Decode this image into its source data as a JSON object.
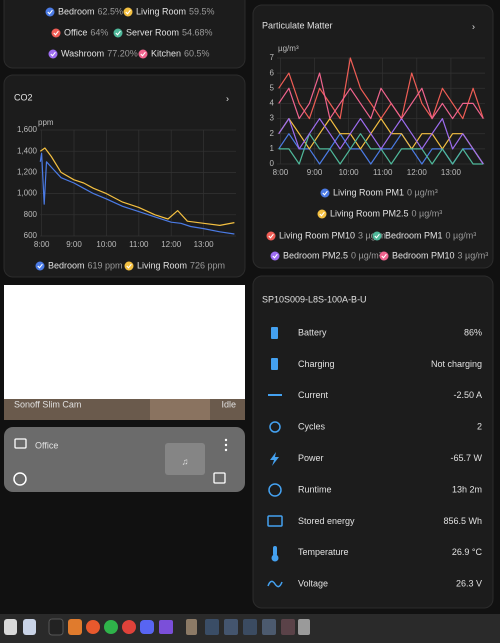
{
  "humidity_legend": [
    {
      "name": "Bedroom",
      "state": "62.5%",
      "color": "#4b7be5"
    },
    {
      "name": "Living Room",
      "state": "59.5%",
      "color": "#f4c041"
    },
    {
      "name": "Office",
      "state": "64%",
      "color": "#ef5d55"
    },
    {
      "name": "Server Room",
      "state": "54.68%",
      "color": "#4fb89a"
    },
    {
      "name": "Washroom",
      "state": "77.20%",
      "color": "#9d6cf0"
    },
    {
      "name": "Kitchen",
      "state": "60.5%",
      "color": "#f0648e"
    }
  ],
  "chart_data": [
    {
      "type": "line",
      "title": "CO2",
      "y_unit": "ppm",
      "xlim": [
        7.95,
        14.0
      ],
      "ylim": [
        600,
        1600
      ],
      "xticks": [
        {
          "value": 8,
          "label": "8:00"
        },
        {
          "value": 9,
          "label": "9:00"
        },
        {
          "value": 10,
          "label": "10:00"
        },
        {
          "value": 11,
          "label": "11:00"
        },
        {
          "value": 12,
          "label": "12:00"
        },
        {
          "value": 13,
          "label": "13:00"
        }
      ],
      "yticks": [
        600,
        800,
        {
          "value": 1000,
          "label": "1,000"
        },
        {
          "value": 1200,
          "label": "1,200"
        },
        {
          "value": 1400,
          "label": "1,400"
        },
        {
          "value": 1600,
          "label": "1,600"
        }
      ],
      "grid": true,
      "series": [
        {
          "name": "Bedroom",
          "state": "619 ppm",
          "color": "#4b7be5",
          "x": [
            7.96,
            8.0,
            8.08,
            8.15,
            8.3,
            8.6,
            9.0,
            9.3,
            9.6,
            10.0,
            10.5,
            11.0,
            11.5,
            12.0,
            12.3,
            12.6,
            13.0,
            13.5,
            13.95
          ],
          "values": [
            1300,
            1380,
            900,
            1300,
            1250,
            1150,
            1100,
            1050,
            1000,
            950,
            880,
            830,
            780,
            730,
            720,
            690,
            670,
            640,
            619
          ]
        },
        {
          "name": "Living Room",
          "state": "726 ppm",
          "color": "#f4c041",
          "x": [
            7.96,
            8.1,
            8.3,
            8.6,
            9.0,
            9.3,
            9.6,
            10.0,
            10.5,
            11.0,
            11.5,
            11.9,
            12.2,
            12.5,
            13.0,
            13.5,
            13.95
          ],
          "values": [
            1400,
            1430,
            1350,
            1200,
            1130,
            1100,
            1050,
            1000,
            920,
            870,
            800,
            760,
            840,
            740,
            720,
            700,
            726
          ]
        }
      ]
    },
    {
      "type": "line",
      "title": "Particulate Matter",
      "y_unit": "µg/m³",
      "xlim": [
        7.9,
        14.0
      ],
      "ylim": [
        0,
        7
      ],
      "xticks": [
        {
          "value": 8,
          "label": "8:00"
        },
        {
          "value": 9,
          "label": "9:00"
        },
        {
          "value": 10,
          "label": "10:00"
        },
        {
          "value": 11,
          "label": "11:00"
        },
        {
          "value": 12,
          "label": "12:00"
        },
        {
          "value": 13,
          "label": "13:00"
        }
      ],
      "yticks": [
        0,
        1,
        2,
        3,
        4,
        5,
        6,
        7
      ],
      "grid": true,
      "x": [
        7.95,
        8.25,
        8.55,
        8.85,
        9.15,
        9.45,
        9.75,
        10.05,
        10.35,
        10.65,
        10.95,
        11.25,
        11.55,
        11.85,
        12.15,
        12.45,
        12.75,
        13.05,
        13.35,
        13.65,
        13.95
      ],
      "series": [
        {
          "name": "Living Room PM1",
          "state": "0 µg/m³",
          "color": "#4b7be5",
          "values": [
            1,
            2,
            1,
            1,
            0,
            1,
            2,
            1,
            1,
            0,
            1,
            1,
            2,
            1,
            0,
            1,
            1,
            0,
            1,
            1,
            0
          ]
        },
        {
          "name": "Living Room PM2.5",
          "state": "0 µg/m³",
          "color": "#f4c041",
          "values": [
            2,
            3,
            2,
            1,
            2,
            3,
            2,
            2,
            1,
            2,
            3,
            2,
            2,
            1,
            2,
            2,
            1,
            2,
            2,
            1,
            0
          ]
        },
        {
          "name": "Living Room PM10",
          "state": "3 µg/m³",
          "color": "#ef5d55",
          "values": [
            5,
            6,
            4,
            3,
            5,
            4,
            3,
            7,
            5,
            4,
            3,
            4,
            3,
            6,
            4,
            3,
            5,
            4,
            3,
            5,
            3
          ]
        },
        {
          "name": "Bedroom PM1",
          "state": "0 µg/m³",
          "color": "#4fb89a",
          "values": [
            1,
            1,
            0,
            2,
            1,
            1,
            0,
            1,
            2,
            1,
            1,
            0,
            1,
            1,
            1,
            0,
            1,
            0,
            1,
            0,
            0
          ]
        },
        {
          "name": "Bedroom PM2.5",
          "state": "0 µg/m³",
          "color": "#9d6cf0",
          "values": [
            2,
            3,
            1,
            2,
            3,
            2,
            1,
            2,
            3,
            2,
            1,
            2,
            3,
            2,
            1,
            2,
            3,
            1,
            2,
            1,
            0
          ]
        },
        {
          "name": "Bedroom PM10",
          "state": "3 µg/m³",
          "color": "#f0648e",
          "values": [
            4,
            5,
            3,
            4,
            6,
            3,
            4,
            5,
            4,
            3,
            5,
            4,
            3,
            4,
            5,
            3,
            4,
            3,
            4,
            4,
            3
          ]
        }
      ]
    }
  ],
  "camera": {
    "name": "Sonoff Slim Cam",
    "state": "Idle"
  },
  "media": {
    "name": "Office"
  },
  "battery": {
    "title": "SP10S009-L8S-100A-B-U",
    "rows": [
      {
        "label": "Battery",
        "value": "86%"
      },
      {
        "label": "Charging",
        "value": "Not charging"
      },
      {
        "label": "Current",
        "value": "-2.50 A"
      },
      {
        "label": "Cycles",
        "value": "2"
      },
      {
        "label": "Power",
        "value": "-65.7 W"
      },
      {
        "label": "Runtime",
        "value": "13h 2m"
      },
      {
        "label": "Stored energy",
        "value": "856.5 Wh"
      },
      {
        "label": "Temperature",
        "value": "26.9 °C"
      },
      {
        "label": "Voltage",
        "value": "26.3 V"
      }
    ]
  }
}
